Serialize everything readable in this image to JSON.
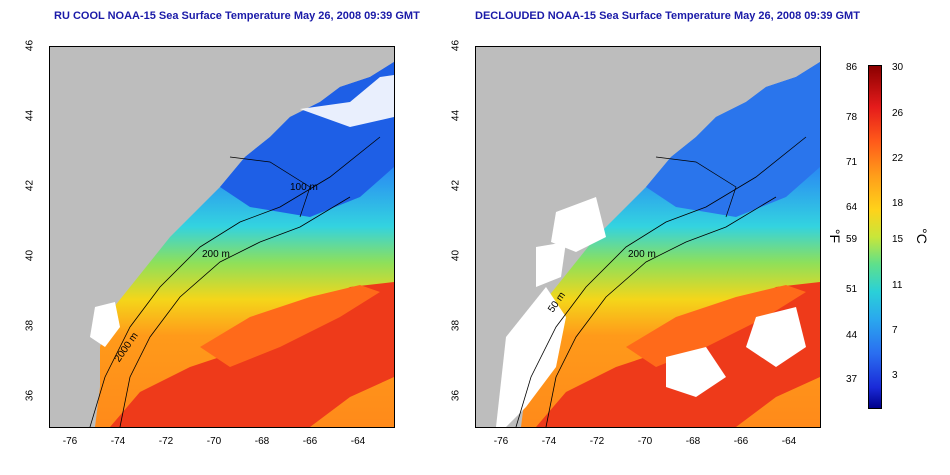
{
  "panels": [
    {
      "title": "RU COOL NOAA-15 Sea Surface Temperature May 26, 2008 09:39 GMT"
    },
    {
      "title": "DECLOUDED NOAA-15 Sea Surface Temperature May 26, 2008 09:39 GMT"
    }
  ],
  "y_ticks": [
    "46",
    "44",
    "42",
    "40",
    "38",
    "36"
  ],
  "x_ticks": [
    "-76",
    "-74",
    "-72",
    "-70",
    "-68",
    "-66",
    "-64"
  ],
  "contour_labels": {
    "c50": "50 m",
    "c200": "200 m",
    "c100": "100 m",
    "c2000": "2000 m",
    "c50b": "50 m",
    "c200b": "200 m"
  },
  "colorbar": {
    "f_ticks": [
      "86",
      "78",
      "71",
      "64",
      "59",
      "51",
      "44",
      "37"
    ],
    "c_ticks": [
      "30",
      "26",
      "22",
      "18",
      "15",
      "11",
      "7",
      "3"
    ],
    "f_unit": "°F",
    "c_unit": "°C"
  }
}
